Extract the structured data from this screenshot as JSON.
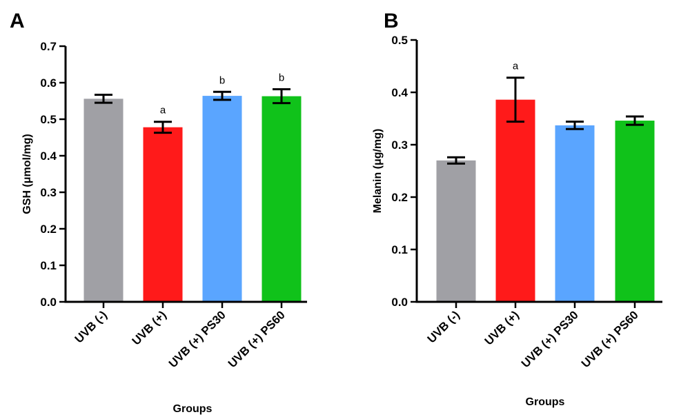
{
  "chart_data": [
    {
      "panel": "A",
      "type": "bar",
      "categories": [
        "UVB (-)",
        "UVB (+)",
        "UVB (+) PS30",
        "UVB (+) PS60"
      ],
      "values": [
        0.556,
        0.478,
        0.564,
        0.563
      ],
      "errors": [
        0.011,
        0.015,
        0.011,
        0.019
      ],
      "significance": [
        "",
        "a",
        "b",
        "b"
      ],
      "colors": [
        "#a0a0a5",
        "#ff1a1a",
        "#5aa5ff",
        "#10c21a"
      ],
      "xlabel": "Groups",
      "ylabel": "GSH (μmol/mg)",
      "ylim": [
        0,
        0.7
      ],
      "yticks": [
        "0.0",
        "0.1",
        "0.2",
        "0.3",
        "0.4",
        "0.5",
        "0.6",
        "0.7"
      ],
      "grid": false
    },
    {
      "panel": "B",
      "type": "bar",
      "categories": [
        "UVB (-)",
        "UVB (+)",
        "UVB (+) PS30",
        "UVB (+) PS60"
      ],
      "values": [
        0.27,
        0.386,
        0.337,
        0.346
      ],
      "errors": [
        0.006,
        0.042,
        0.007,
        0.008
      ],
      "significance": [
        "",
        "a",
        "",
        ""
      ],
      "colors": [
        "#a0a0a5",
        "#ff1a1a",
        "#5aa5ff",
        "#10c21a"
      ],
      "xlabel": "Groups",
      "ylabel": "Melanin (μg/mg)",
      "ylim": [
        0,
        0.5
      ],
      "yticks": [
        "0.0",
        "0.1",
        "0.2",
        "0.3",
        "0.4",
        "0.5"
      ],
      "grid": false
    }
  ]
}
